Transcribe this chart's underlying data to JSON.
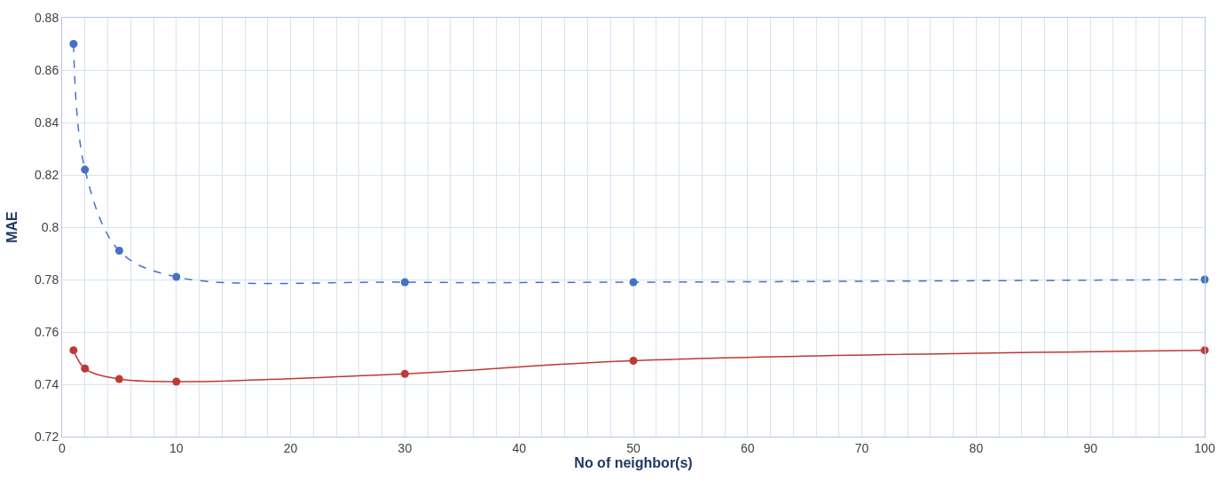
{
  "chart_data": {
    "type": "line",
    "xlabel": "No of neighbor(s)",
    "ylabel": "MAE",
    "x": [
      1,
      2,
      5,
      10,
      30,
      50,
      100
    ],
    "series": [
      {
        "color": "#4472c4",
        "line_style": "dashed",
        "values": [
          0.87,
          0.822,
          0.791,
          0.781,
          0.779,
          0.779,
          0.78
        ]
      },
      {
        "color": "#be3a34",
        "line_style": "solid",
        "values": [
          0.753,
          0.746,
          0.742,
          0.741,
          0.744,
          0.749,
          0.753
        ]
      }
    ],
    "xlim": [
      0,
      100
    ],
    "xticks": [
      0,
      {
        "value": 2,
        "label": null
      },
      {
        "value": 4,
        "label": null
      },
      {
        "value": 6,
        "label": null
      },
      {
        "value": 8,
        "label": null
      },
      10,
      {
        "value": 12,
        "label": null
      },
      {
        "value": 14,
        "label": null
      },
      {
        "value": 16,
        "label": null
      },
      {
        "value": 18,
        "label": null
      },
      20,
      {
        "value": 22,
        "label": null
      },
      {
        "value": 24,
        "label": null
      },
      {
        "value": 26,
        "label": null
      },
      {
        "value": 28,
        "label": null
      },
      30,
      {
        "value": 32,
        "label": null
      },
      {
        "value": 34,
        "label": null
      },
      {
        "value": 36,
        "label": null
      },
      {
        "value": 38,
        "label": null
      },
      40,
      {
        "value": 42,
        "label": null
      },
      {
        "value": 44,
        "label": null
      },
      {
        "value": 46,
        "label": null
      },
      {
        "value": 48,
        "label": null
      },
      50,
      {
        "value": 52,
        "label": null
      },
      {
        "value": 54,
        "label": null
      },
      {
        "value": 56,
        "label": null
      },
      {
        "value": 58,
        "label": null
      },
      60,
      {
        "value": 62,
        "label": null
      },
      {
        "value": 64,
        "label": null
      },
      {
        "value": 66,
        "label": null
      },
      {
        "value": 68,
        "label": null
      },
      70,
      {
        "value": 72,
        "label": null
      },
      {
        "value": 74,
        "label": null
      },
      {
        "value": 76,
        "label": null
      },
      {
        "value": 78,
        "label": null
      },
      80,
      {
        "value": 82,
        "label": null
      },
      {
        "value": 84,
        "label": null
      },
      {
        "value": 86,
        "label": null
      },
      {
        "value": 88,
        "label": null
      },
      90,
      {
        "value": 92,
        "label": null
      },
      {
        "value": 94,
        "label": null
      },
      {
        "value": 96,
        "label": null
      },
      {
        "value": 98,
        "label": null
      },
      100
    ],
    "ylim": [
      0.72,
      0.88
    ],
    "yticks": [
      0.72,
      0.74,
      0.76,
      0.78,
      0.8,
      0.82,
      0.84,
      0.86,
      0.88
    ],
    "grid": true,
    "marker": "circle",
    "legend": false
  }
}
